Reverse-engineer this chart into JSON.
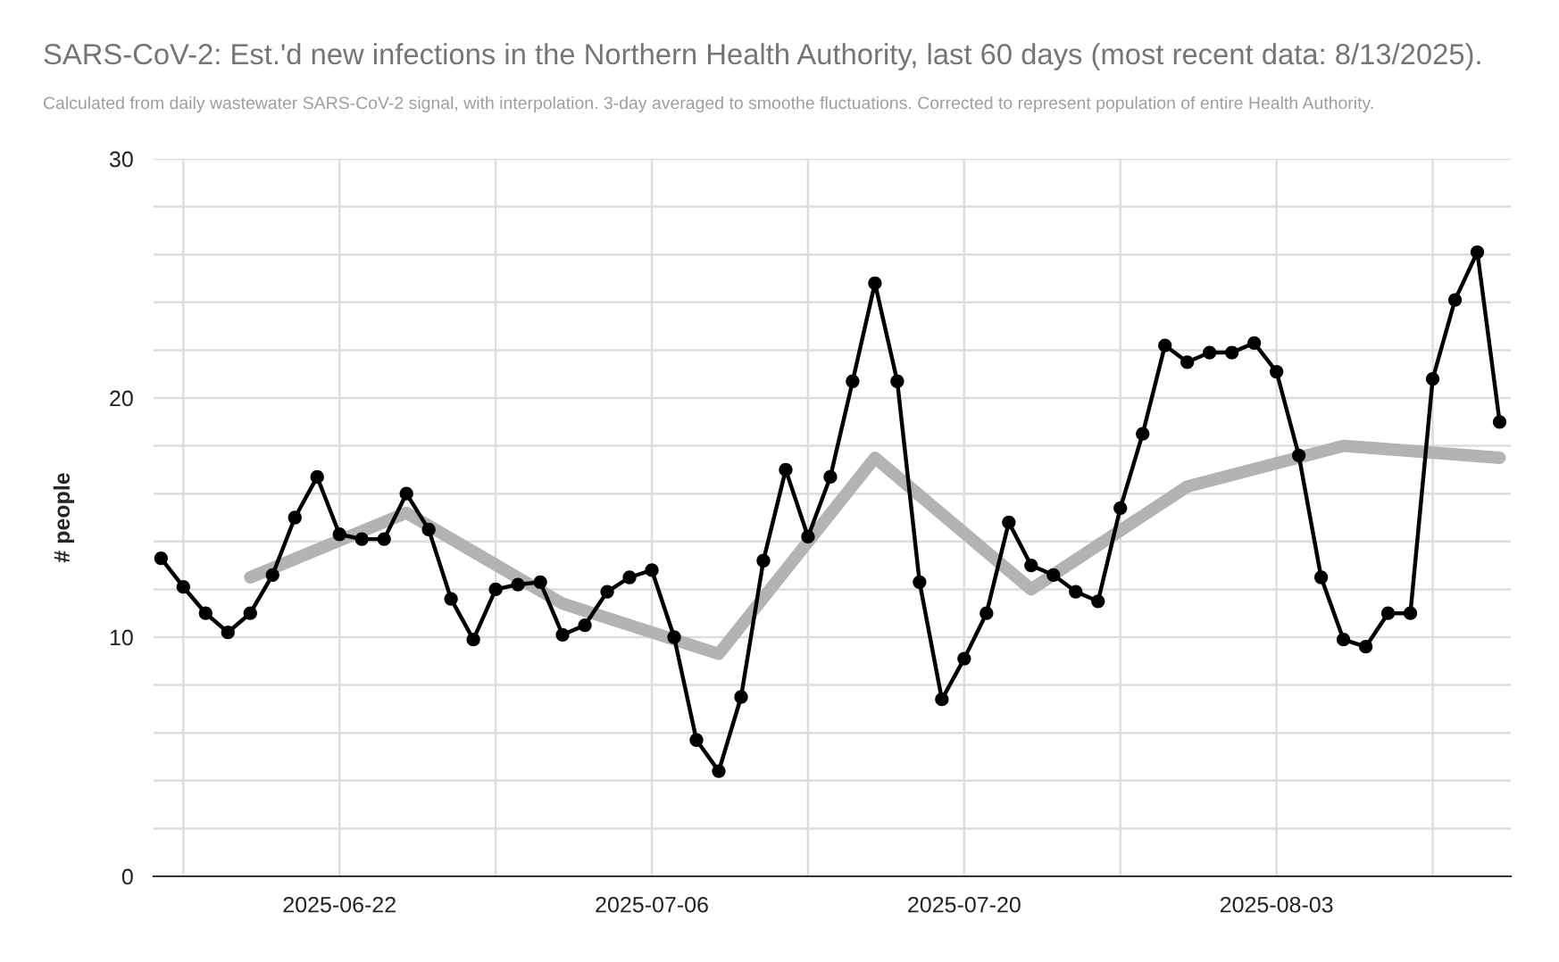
{
  "chart_data": {
    "type": "line",
    "title": "SARS-CoV-2: Est.'d new infections in the Northern Health Authority, last 60 days (most recent data: 8/13/2025).",
    "subtitle": "Calculated from daily wastewater SARS-CoV-2 signal, with interpolation. 3-day averaged to smoothe fluctuations. Corrected to represent population of entire Health Authority.",
    "ylabel": "# people",
    "x": [
      "2025-06-14",
      "2025-06-15",
      "2025-06-16",
      "2025-06-17",
      "2025-06-18",
      "2025-06-19",
      "2025-06-20",
      "2025-06-21",
      "2025-06-22",
      "2025-06-23",
      "2025-06-24",
      "2025-06-25",
      "2025-06-26",
      "2025-06-27",
      "2025-06-28",
      "2025-06-29",
      "2025-06-30",
      "2025-07-01",
      "2025-07-02",
      "2025-07-03",
      "2025-07-04",
      "2025-07-05",
      "2025-07-06",
      "2025-07-07",
      "2025-07-08",
      "2025-07-09",
      "2025-07-10",
      "2025-07-11",
      "2025-07-12",
      "2025-07-13",
      "2025-07-14",
      "2025-07-15",
      "2025-07-16",
      "2025-07-17",
      "2025-07-18",
      "2025-07-19",
      "2025-07-20",
      "2025-07-21",
      "2025-07-22",
      "2025-07-23",
      "2025-07-24",
      "2025-07-25",
      "2025-07-26",
      "2025-07-27",
      "2025-07-28",
      "2025-07-29",
      "2025-07-30",
      "2025-07-31",
      "2025-08-01",
      "2025-08-02",
      "2025-08-03",
      "2025-08-04",
      "2025-08-05",
      "2025-08-06",
      "2025-08-07",
      "2025-08-08",
      "2025-08-09",
      "2025-08-10",
      "2025-08-11",
      "2025-08-12",
      "2025-08-13"
    ],
    "series": [
      {
        "type": "line",
        "color": "#b3b3b3",
        "marker": "none",
        "x": [
          "2025-06-18",
          "2025-06-25",
          "2025-07-02",
          "2025-07-09",
          "2025-07-16",
          "2025-07-23",
          "2025-07-30",
          "2025-08-06",
          "2025-08-13"
        ],
        "values": [
          12.5,
          15.2,
          11.4,
          9.3,
          17.5,
          12.0,
          16.3,
          18.0,
          17.5
        ]
      },
      {
        "type": "line",
        "color": "#000000",
        "marker": "circle",
        "values": [
          13.3,
          12.1,
          11.0,
          10.2,
          11.0,
          12.6,
          15.0,
          16.7,
          14.3,
          14.1,
          14.1,
          16.0,
          14.5,
          11.6,
          9.9,
          12.0,
          12.2,
          12.3,
          10.1,
          10.5,
          11.9,
          12.5,
          12.8,
          10.0,
          5.7,
          4.4,
          7.5,
          13.2,
          17.0,
          14.2,
          16.7,
          20.7,
          24.8,
          20.7,
          12.3,
          7.4,
          9.1,
          11.0,
          14.8,
          13.0,
          12.6,
          11.9,
          11.5,
          15.4,
          18.5,
          22.2,
          21.5,
          21.9,
          21.9,
          22.3,
          21.1,
          17.6,
          12.5,
          9.9,
          9.6,
          11.0,
          11.0,
          20.8,
          24.1,
          26.1,
          19.0
        ]
      }
    ],
    "xlim": [
      "2025-06-13T16:00",
      "2025-08-13T12:00"
    ],
    "xticks": [
      {
        "value": "2025-06-15",
        "label": null
      },
      {
        "value": "2025-06-22",
        "label": "2025-06-22"
      },
      {
        "value": "2025-06-29",
        "label": null
      },
      {
        "value": "2025-07-06",
        "label": "2025-07-06"
      },
      {
        "value": "2025-07-13",
        "label": null
      },
      {
        "value": "2025-07-20",
        "label": "2025-07-20"
      },
      {
        "value": "2025-07-27",
        "label": null
      },
      {
        "value": "2025-08-03",
        "label": "2025-08-03"
      },
      {
        "value": "2025-08-10",
        "label": null
      }
    ],
    "ylim": [
      0,
      30
    ],
    "yticks": [
      0,
      {
        "value": 2,
        "label": null
      },
      {
        "value": 4,
        "label": null
      },
      {
        "value": 6,
        "label": null
      },
      {
        "value": 8,
        "label": null
      },
      10,
      {
        "value": 12,
        "label": null
      },
      {
        "value": 14,
        "label": null
      },
      {
        "value": 16,
        "label": null
      },
      {
        "value": 18,
        "label": null
      },
      20,
      {
        "value": 22,
        "label": null
      },
      {
        "value": 24,
        "label": null
      },
      {
        "value": 26,
        "label": null
      },
      {
        "value": 28,
        "label": null
      },
      30
    ],
    "grid": true,
    "legend": false
  }
}
